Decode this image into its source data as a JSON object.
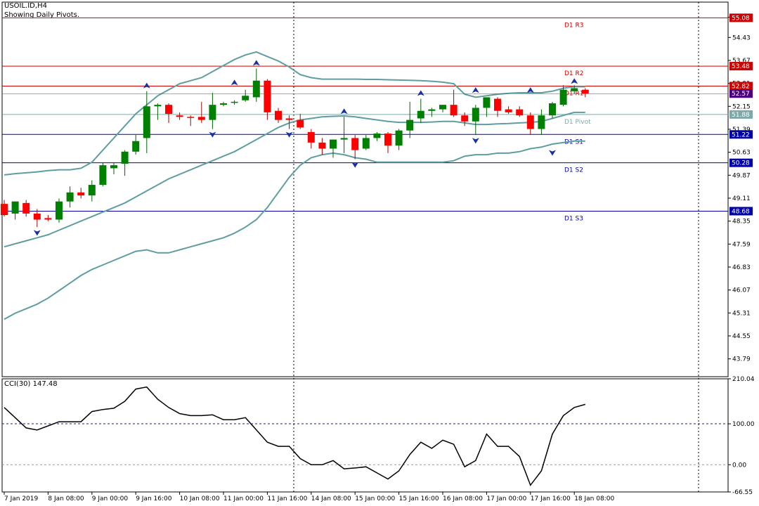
{
  "header": {
    "symbol": "USOIL.ID,H4",
    "note": "Showing Daily Pivots."
  },
  "colors": {
    "bull": "#008000",
    "bear": "#ff0000",
    "band": "#5f9ea0",
    "resistance": "#cc0000",
    "support": "#0000aa",
    "pivot": "#7fa9a9",
    "fractal": "#1a2ea8",
    "cci": "#000000",
    "grid_dash": "#000000"
  },
  "chart_data": [
    {
      "type": "candlestick",
      "title": "USOIL.ID,H4",
      "ylim": [
        43.2,
        55.6
      ],
      "y_ticks": [
        "55.10",
        "54.43",
        "53.67",
        "52.91",
        "52.15",
        "51.39",
        "50.63",
        "49.87",
        "49.11",
        "48.35",
        "47.59",
        "46.83",
        "46.07",
        "45.31",
        "44.55",
        "43.79"
      ],
      "x_ticks": [
        "7 Jan 2019",
        "8 Jan 08:00",
        "9 Jan 00:00",
        "9 Jan 16:00",
        "10 Jan 08:00",
        "11 Jan 00:00",
        "11 Jan 16:00",
        "14 Jan 08:00",
        "15 Jan 00:00",
        "15 Jan 16:00",
        "16 Jan 08:00",
        "17 Jan 00:00",
        "17 Jan 16:00",
        "18 Jan 08:00"
      ],
      "x_tick_index": [
        0,
        4,
        8,
        12,
        16,
        20,
        24,
        28,
        32,
        36,
        40,
        44,
        48,
        52
      ],
      "candles": [
        {
          "o": 48.92,
          "h": 49.05,
          "l": 48.5,
          "c": 48.55
        },
        {
          "o": 48.6,
          "h": 49.0,
          "l": 48.4,
          "c": 49.0
        },
        {
          "o": 48.95,
          "h": 49.05,
          "l": 48.5,
          "c": 48.6
        },
        {
          "o": 48.6,
          "h": 48.75,
          "l": 48.15,
          "c": 48.4
        },
        {
          "o": 48.45,
          "h": 48.55,
          "l": 48.35,
          "c": 48.4
        },
        {
          "o": 48.4,
          "h": 49.1,
          "l": 48.3,
          "c": 49.0
        },
        {
          "o": 49.0,
          "h": 49.5,
          "l": 48.8,
          "c": 49.3
        },
        {
          "o": 49.3,
          "h": 49.45,
          "l": 49.1,
          "c": 49.2
        },
        {
          "o": 49.2,
          "h": 49.7,
          "l": 49.0,
          "c": 49.55
        },
        {
          "o": 49.55,
          "h": 50.3,
          "l": 49.5,
          "c": 50.2
        },
        {
          "o": 50.1,
          "h": 50.3,
          "l": 49.9,
          "c": 50.2
        },
        {
          "o": 50.25,
          "h": 50.7,
          "l": 49.85,
          "c": 50.65
        },
        {
          "o": 50.65,
          "h": 51.2,
          "l": 50.55,
          "c": 51.0
        },
        {
          "o": 51.1,
          "h": 52.65,
          "l": 50.6,
          "c": 52.15
        },
        {
          "o": 52.15,
          "h": 52.25,
          "l": 51.7,
          "c": 52.2
        },
        {
          "o": 52.2,
          "h": 52.25,
          "l": 51.6,
          "c": 51.9
        },
        {
          "o": 51.85,
          "h": 51.95,
          "l": 51.7,
          "c": 51.8
        },
        {
          "o": 51.8,
          "h": 51.85,
          "l": 51.5,
          "c": 51.78
        },
        {
          "o": 51.8,
          "h": 52.3,
          "l": 51.6,
          "c": 51.7
        },
        {
          "o": 51.7,
          "h": 52.6,
          "l": 51.4,
          "c": 52.2
        },
        {
          "o": 52.2,
          "h": 52.3,
          "l": 52.15,
          "c": 52.25
        },
        {
          "o": 52.3,
          "h": 52.35,
          "l": 52.2,
          "c": 52.3
        },
        {
          "o": 52.35,
          "h": 52.7,
          "l": 52.3,
          "c": 52.5
        },
        {
          "o": 52.45,
          "h": 53.4,
          "l": 52.3,
          "c": 53.0
        },
        {
          "o": 53.0,
          "h": 53.05,
          "l": 51.7,
          "c": 51.95
        },
        {
          "o": 52.0,
          "h": 52.1,
          "l": 51.6,
          "c": 51.7
        },
        {
          "o": 51.75,
          "h": 51.85,
          "l": 51.4,
          "c": 51.7
        },
        {
          "o": 51.7,
          "h": 51.9,
          "l": 51.4,
          "c": 51.45
        },
        {
          "o": 51.3,
          "h": 51.4,
          "l": 50.75,
          "c": 50.95
        },
        {
          "o": 50.95,
          "h": 51.1,
          "l": 50.55,
          "c": 50.75
        },
        {
          "o": 50.75,
          "h": 51.05,
          "l": 50.45,
          "c": 51.05
        },
        {
          "o": 51.05,
          "h": 51.8,
          "l": 50.6,
          "c": 51.1
        },
        {
          "o": 51.1,
          "h": 51.2,
          "l": 50.4,
          "c": 50.7
        },
        {
          "o": 50.75,
          "h": 51.2,
          "l": 50.7,
          "c": 51.1
        },
        {
          "o": 51.1,
          "h": 51.3,
          "l": 51.0,
          "c": 51.25
        },
        {
          "o": 51.25,
          "h": 51.3,
          "l": 50.6,
          "c": 50.85
        },
        {
          "o": 50.85,
          "h": 51.4,
          "l": 50.7,
          "c": 51.35
        },
        {
          "o": 51.35,
          "h": 52.3,
          "l": 51.1,
          "c": 51.7
        },
        {
          "o": 51.75,
          "h": 52.4,
          "l": 51.6,
          "c": 52.0
        },
        {
          "o": 52.0,
          "h": 52.1,
          "l": 51.8,
          "c": 52.05
        },
        {
          "o": 52.05,
          "h": 52.2,
          "l": 51.95,
          "c": 52.2
        },
        {
          "o": 52.2,
          "h": 52.7,
          "l": 51.8,
          "c": 51.85
        },
        {
          "o": 51.85,
          "h": 51.95,
          "l": 51.5,
          "c": 51.65
        },
        {
          "o": 51.65,
          "h": 52.2,
          "l": 51.2,
          "c": 52.1
        },
        {
          "o": 52.1,
          "h": 52.4,
          "l": 51.8,
          "c": 52.45
        },
        {
          "o": 52.4,
          "h": 52.45,
          "l": 51.8,
          "c": 52.0
        },
        {
          "o": 52.05,
          "h": 52.15,
          "l": 51.9,
          "c": 51.95
        },
        {
          "o": 52.05,
          "h": 52.15,
          "l": 51.8,
          "c": 51.85
        },
        {
          "o": 51.85,
          "h": 51.95,
          "l": 51.2,
          "c": 51.4
        },
        {
          "o": 51.4,
          "h": 52.05,
          "l": 51.2,
          "c": 51.85
        },
        {
          "o": 51.85,
          "h": 52.3,
          "l": 51.75,
          "c": 52.25
        },
        {
          "o": 52.2,
          "h": 52.85,
          "l": 52.15,
          "c": 52.7
        },
        {
          "o": 52.65,
          "h": 52.85,
          "l": 52.55,
          "c": 52.75
        },
        {
          "o": 52.7,
          "h": 52.75,
          "l": 52.45,
          "c": 52.57
        }
      ],
      "bands": {
        "upper": [
          49.88,
          49.92,
          49.95,
          49.98,
          50.02,
          50.05,
          50.05,
          50.1,
          50.3,
          50.7,
          51.1,
          51.5,
          51.9,
          52.2,
          52.5,
          52.7,
          52.9,
          53.0,
          53.1,
          53.3,
          53.5,
          53.7,
          53.85,
          53.95,
          53.8,
          53.65,
          53.45,
          53.2,
          53.1,
          53.05,
          53.05,
          53.05,
          53.05,
          53.04,
          53.04,
          53.03,
          53.02,
          53.01,
          53.0,
          52.98,
          52.95,
          52.9,
          52.55,
          52.45,
          52.5,
          52.55,
          52.58,
          52.6,
          52.6,
          52.6,
          52.65,
          52.75,
          52.8,
          52.8
        ],
        "middle": [
          47.5,
          47.6,
          47.7,
          47.8,
          47.9,
          48.05,
          48.2,
          48.35,
          48.5,
          48.65,
          48.8,
          48.95,
          49.15,
          49.35,
          49.55,
          49.75,
          49.9,
          50.05,
          50.2,
          50.35,
          50.5,
          50.65,
          50.85,
          51.05,
          51.25,
          51.45,
          51.6,
          51.7,
          51.75,
          51.8,
          51.82,
          51.83,
          51.8,
          51.75,
          51.7,
          51.65,
          51.62,
          51.62,
          51.62,
          51.63,
          51.65,
          51.65,
          51.6,
          51.55,
          51.55,
          51.57,
          51.58,
          51.6,
          51.62,
          51.65,
          51.75,
          51.85,
          51.95,
          51.95
        ],
        "lower": [
          45.1,
          45.3,
          45.45,
          45.6,
          45.8,
          46.05,
          46.3,
          46.55,
          46.75,
          46.9,
          47.05,
          47.2,
          47.35,
          47.4,
          47.3,
          47.3,
          47.4,
          47.5,
          47.6,
          47.7,
          47.8,
          47.95,
          48.15,
          48.4,
          48.8,
          49.3,
          49.8,
          50.2,
          50.45,
          50.55,
          50.6,
          50.55,
          50.45,
          50.4,
          50.3,
          50.3,
          50.3,
          50.3,
          50.3,
          50.3,
          50.3,
          50.35,
          50.5,
          50.55,
          50.55,
          50.6,
          50.6,
          50.65,
          50.75,
          50.8,
          50.9,
          50.95,
          51.0,
          51.0
        ]
      },
      "pivots": [
        {
          "name": "D1 R3",
          "value": 55.08,
          "tag": "55.08",
          "kind": "resistance"
        },
        {
          "name": "D1 R2",
          "value": 53.48,
          "tag": "53.48",
          "kind": "resistance"
        },
        {
          "name": "D1 R1",
          "value": 52.82,
          "tag": "52.82",
          "kind": "resistance"
        },
        {
          "name": "D1 Pivot",
          "value": 51.88,
          "tag": "51.88",
          "kind": "pivot"
        },
        {
          "name": "D1 S1",
          "value": 51.22,
          "tag": "51.22",
          "kind": "support"
        },
        {
          "name": "D1 S2",
          "value": 50.28,
          "tag": "50.28",
          "kind": "support"
        },
        {
          "name": "D1 S3",
          "value": 48.68,
          "tag": "48.68",
          "kind": "support"
        }
      ],
      "current_price": {
        "value": 52.57,
        "tag": "52.57"
      },
      "fractals_up": [
        {
          "i": 13,
          "v": 52.7
        },
        {
          "i": 21,
          "v": 52.8
        },
        {
          "i": 23,
          "v": 53.45
        },
        {
          "i": 31,
          "v": 51.85
        },
        {
          "i": 38,
          "v": 52.45
        },
        {
          "i": 43,
          "v": 52.55
        },
        {
          "i": 48,
          "v": 52.55
        },
        {
          "i": 52,
          "v": 52.85
        }
      ],
      "fractals_down": [
        {
          "i": 3,
          "v": 48.1
        },
        {
          "i": 19,
          "v": 51.35
        },
        {
          "i": 26,
          "v": 51.35
        },
        {
          "i": 32,
          "v": 50.35
        },
        {
          "i": 43,
          "v": 51.15
        },
        {
          "i": 50,
          "v": 50.75
        }
      ]
    },
    {
      "type": "line",
      "title": "CCI(30) 147.48",
      "ylim": [
        -66.55,
        210.04
      ],
      "y_ticks": [
        "210.04",
        "100.00",
        "0.00",
        "-66.55"
      ],
      "levels": [
        100,
        0
      ],
      "series": [
        {
          "values": [
            140,
            115,
            90,
            85,
            95,
            105,
            105,
            105,
            130,
            135,
            138,
            155,
            185,
            190,
            160,
            140,
            125,
            120,
            120,
            122,
            110,
            110,
            115,
            85,
            55,
            45,
            45,
            15,
            0,
            0,
            10,
            -10,
            -8,
            -5,
            -20,
            -35,
            -15,
            25,
            55,
            40,
            60,
            50,
            -5,
            10,
            75,
            45,
            45,
            20,
            -50,
            -15,
            75,
            120,
            140,
            147.48
          ]
        }
      ]
    }
  ]
}
